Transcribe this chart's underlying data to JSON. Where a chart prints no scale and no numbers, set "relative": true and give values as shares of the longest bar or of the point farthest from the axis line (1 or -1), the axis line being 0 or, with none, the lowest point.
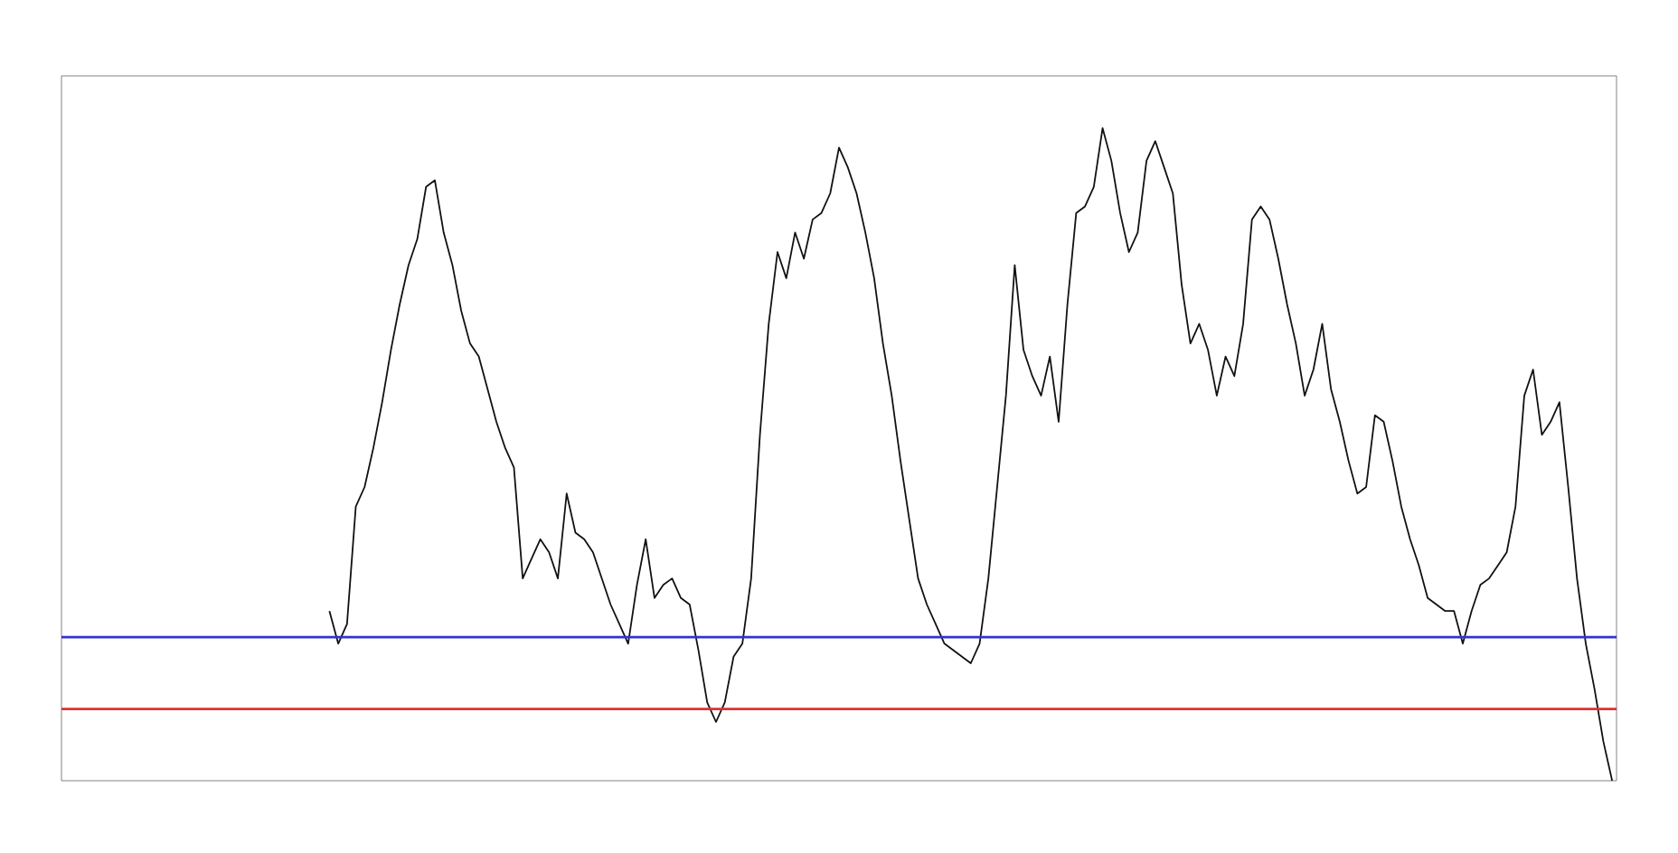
{
  "chart_data": {
    "type": "line",
    "relative": true,
    "categories": [
      null,
      null,
      null,
      null,
      null,
      null,
      null,
      null,
      null,
      null,
      null,
      null,
      null,
      null,
      null,
      null,
      null,
      null,
      null,
      null,
      null,
      null,
      null,
      null,
      null,
      null,
      null,
      null,
      null,
      null,
      null,
      null,
      null,
      null,
      null,
      null,
      null,
      null,
      null,
      null,
      null,
      null,
      null,
      null,
      null,
      null,
      null,
      null,
      null,
      null,
      null,
      null,
      null,
      null,
      null,
      null,
      null,
      null,
      null,
      null,
      null,
      null,
      null,
      null,
      null,
      null,
      null,
      null,
      null,
      null,
      null,
      null,
      null,
      null,
      null,
      null,
      null,
      null,
      null,
      null,
      null,
      null,
      null,
      null,
      null,
      null,
      null,
      null,
      null,
      null,
      null,
      null,
      null,
      null,
      null,
      null,
      null,
      null,
      null,
      null,
      null,
      null,
      null,
      null,
      null,
      null,
      null,
      null,
      null,
      null,
      null,
      null,
      null,
      null,
      null,
      null,
      null,
      null,
      null,
      null,
      null,
      null,
      null,
      null,
      null,
      null,
      null,
      null,
      null,
      null,
      null,
      null,
      null,
      null,
      null,
      null,
      null,
      null,
      null,
      null,
      null,
      null,
      null,
      null,
      null,
      null,
      null,
      null,
      null,
      null,
      null,
      null,
      null,
      null,
      null,
      null,
      null,
      null,
      null,
      null,
      null,
      null,
      null,
      null,
      null,
      null,
      null,
      null,
      null,
      null,
      null,
      null,
      null,
      null,
      null,
      null,
      null
    ],
    "series": [
      {
        "color": "#111111",
        "values": [
          null,
          null,
          null,
          null,
          null,
          null,
          null,
          null,
          null,
          null,
          null,
          null,
          null,
          null,
          null,
          null,
          null,
          null,
          null,
          null,
          null,
          null,
          null,
          null,
          null,
          null,
          null,
          null,
          null,
          null,
          0.26,
          0.21,
          0.24,
          0.42,
          0.45,
          0.51,
          0.58,
          0.66,
          0.73,
          0.79,
          0.83,
          0.91,
          0.92,
          0.84,
          0.79,
          0.72,
          0.67,
          0.65,
          0.6,
          0.55,
          0.51,
          0.48,
          0.31,
          0.34,
          0.37,
          0.35,
          0.31,
          0.44,
          0.38,
          0.37,
          0.35,
          0.31,
          0.27,
          0.24,
          0.21,
          0.3,
          0.37,
          0.28,
          0.3,
          0.31,
          0.28,
          0.27,
          0.2,
          0.12,
          0.09,
          0.12,
          0.19,
          0.21,
          0.31,
          0.53,
          0.7,
          0.81,
          0.77,
          0.84,
          0.8,
          0.86,
          0.87,
          0.9,
          0.97,
          0.94,
          0.9,
          0.84,
          0.77,
          0.67,
          0.59,
          0.49,
          0.4,
          0.31,
          0.27,
          0.24,
          0.21,
          0.2,
          0.19,
          0.18,
          0.21,
          0.31,
          0.45,
          0.59,
          0.79,
          0.66,
          0.62,
          0.59,
          0.65,
          0.55,
          0.73,
          0.87,
          0.88,
          0.91,
          1.0,
          0.95,
          0.87,
          0.81,
          0.84,
          0.95,
          0.98,
          0.94,
          0.9,
          0.76,
          0.67,
          0.7,
          0.66,
          0.59,
          0.65,
          0.62,
          0.7,
          0.86,
          0.88,
          0.86,
          0.8,
          0.73,
          0.67,
          0.59,
          0.63,
          0.7,
          0.6,
          0.55,
          0.49,
          0.44,
          0.45,
          0.56,
          0.55,
          0.49,
          0.42,
          0.37,
          0.33,
          0.28,
          0.27,
          0.26,
          0.26,
          0.21,
          0.26,
          0.3,
          0.31,
          0.33,
          0.35,
          0.42,
          0.59,
          0.63,
          0.53,
          0.55,
          0.58,
          0.45,
          0.31,
          0.21,
          0.14,
          0.06,
          0.0
        ]
      }
    ],
    "ref_lines": [
      {
        "axis": "y",
        "value": 0.22,
        "color": "#3333cc"
      },
      {
        "axis": "y",
        "value": 0.11,
        "color": "#e03030"
      }
    ],
    "line_style": "solid",
    "marker": "none"
  }
}
